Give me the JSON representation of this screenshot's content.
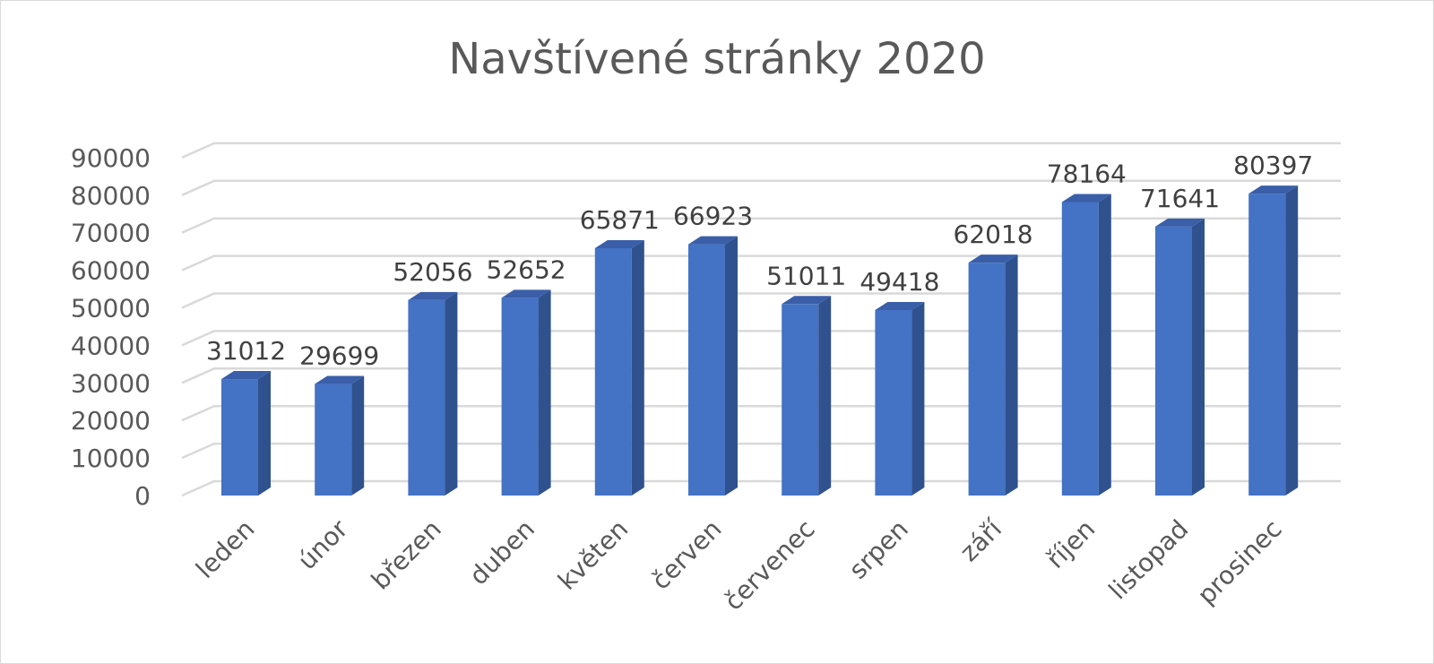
{
  "chart_data": {
    "type": "bar",
    "title": "Navštívené stránky 2020",
    "categories": [
      "leden",
      "únor",
      "březen",
      "duben",
      "květen",
      "červen",
      "červenec",
      "srpen",
      "září",
      "říjen",
      "listopad",
      "prosinec"
    ],
    "values": [
      31012,
      29699,
      52056,
      52652,
      65871,
      66923,
      51011,
      49418,
      62018,
      78164,
      71641,
      80397
    ],
    "data_labels": [
      "31012",
      "29699",
      "52056",
      "52652",
      "65871",
      "66923",
      "51011",
      "49418",
      "62018",
      "78164",
      "71641",
      "80397"
    ],
    "y_ticks": [
      "0",
      "10000",
      "20000",
      "30000",
      "40000",
      "50000",
      "60000",
      "70000",
      "80000",
      "90000"
    ],
    "ylim": [
      0,
      90000
    ],
    "grid": true,
    "style": "3d-clustered-column",
    "colors": {
      "bar_front": "#4472C4",
      "bar_side": "#2F528F",
      "bar_top": "#3A5FA8",
      "grid": "#d9d9d9"
    }
  }
}
